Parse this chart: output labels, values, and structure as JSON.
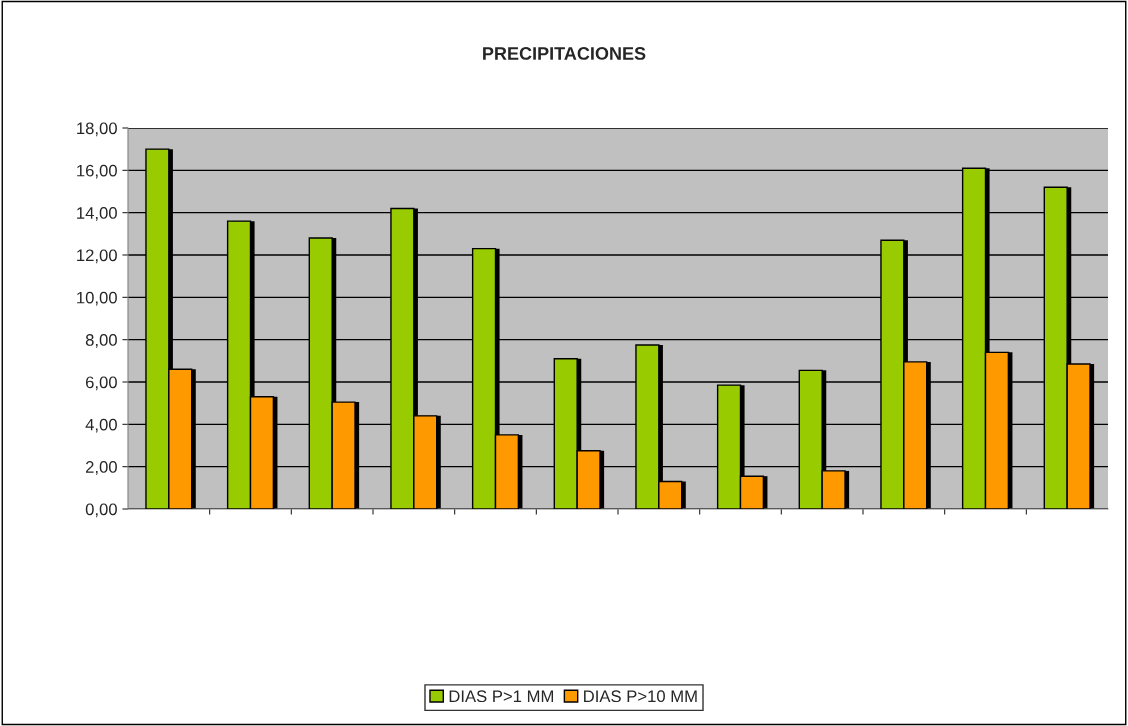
{
  "chart_data": {
    "type": "bar",
    "title": "PRECIPITACIONES",
    "categories": [
      null,
      null,
      null,
      null,
      null,
      null,
      null,
      null,
      null,
      null,
      null,
      null
    ],
    "series": [
      {
        "name": "DIAS P>1 MM",
        "color": "#99cc00",
        "values": [
          17.0,
          13.6,
          12.8,
          14.2,
          12.3,
          7.1,
          7.75,
          5.85,
          6.55,
          12.7,
          16.1,
          15.2
        ]
      },
      {
        "name": "DIAS P>10 MM",
        "color": "#ff9900",
        "values": [
          6.6,
          5.3,
          5.05,
          4.4,
          3.5,
          2.75,
          1.3,
          1.55,
          1.8,
          6.95,
          7.4,
          6.85
        ]
      }
    ],
    "ylim": [
      0,
      18
    ],
    "yticks": [
      {
        "value": 0,
        "label": "0,00"
      },
      {
        "value": 2,
        "label": "2,00"
      },
      {
        "value": 4,
        "label": "4,00"
      },
      {
        "value": 6,
        "label": "6,00"
      },
      {
        "value": 8,
        "label": "8,00"
      },
      {
        "value": 10,
        "label": "10,00"
      },
      {
        "value": 12,
        "label": "12,00"
      },
      {
        "value": 14,
        "label": "14,00"
      },
      {
        "value": 16,
        "label": "16,00"
      },
      {
        "value": 18,
        "label": "18,00"
      }
    ],
    "grid": "y",
    "legend": "bottom"
  }
}
